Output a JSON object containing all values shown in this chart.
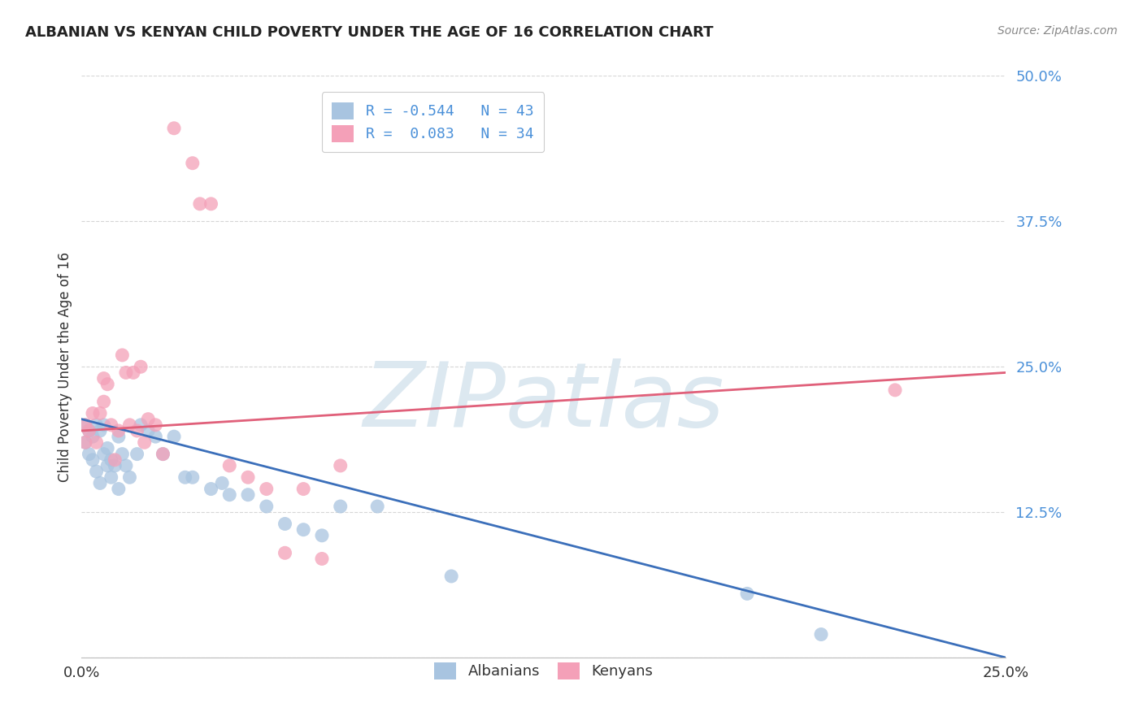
{
  "title": "ALBANIAN VS KENYAN CHILD POVERTY UNDER THE AGE OF 16 CORRELATION CHART",
  "source": "Source: ZipAtlas.com",
  "ylabel": "Child Poverty Under the Age of 16",
  "xlim": [
    0.0,
    0.25
  ],
  "ylim": [
    0.0,
    0.5
  ],
  "yticks": [
    0.0,
    0.125,
    0.25,
    0.375,
    0.5
  ],
  "ytick_labels": [
    "",
    "12.5%",
    "25.0%",
    "37.5%",
    "50.0%"
  ],
  "xtick_labels": [
    "0.0%",
    "",
    "",
    "",
    "",
    "25.0%"
  ],
  "albanian_color": "#a8c4e0",
  "kenyan_color": "#f4a0b8",
  "albanian_line_color": "#3b6fba",
  "kenyan_line_color": "#e0607a",
  "background_color": "#ffffff",
  "grid_color": "#cccccc",
  "watermark_color": "#dce8f0",
  "albanian_R": -0.544,
  "albanian_N": 43,
  "kenyan_R": 0.083,
  "kenyan_N": 34,
  "albanian_x": [
    0.001,
    0.001,
    0.002,
    0.002,
    0.003,
    0.003,
    0.004,
    0.004,
    0.005,
    0.005,
    0.006,
    0.006,
    0.007,
    0.007,
    0.008,
    0.008,
    0.009,
    0.01,
    0.01,
    0.011,
    0.012,
    0.013,
    0.015,
    0.016,
    0.018,
    0.02,
    0.022,
    0.025,
    0.028,
    0.03,
    0.035,
    0.038,
    0.04,
    0.045,
    0.05,
    0.055,
    0.06,
    0.065,
    0.07,
    0.08,
    0.1,
    0.18,
    0.2
  ],
  "albanian_y": [
    0.2,
    0.185,
    0.195,
    0.175,
    0.19,
    0.17,
    0.2,
    0.16,
    0.195,
    0.15,
    0.2,
    0.175,
    0.165,
    0.18,
    0.17,
    0.155,
    0.165,
    0.19,
    0.145,
    0.175,
    0.165,
    0.155,
    0.175,
    0.2,
    0.195,
    0.19,
    0.175,
    0.19,
    0.155,
    0.155,
    0.145,
    0.15,
    0.14,
    0.14,
    0.13,
    0.115,
    0.11,
    0.105,
    0.13,
    0.13,
    0.07,
    0.055,
    0.02
  ],
  "kenyan_x": [
    0.001,
    0.001,
    0.002,
    0.003,
    0.004,
    0.005,
    0.006,
    0.006,
    0.007,
    0.008,
    0.009,
    0.01,
    0.011,
    0.012,
    0.013,
    0.014,
    0.015,
    0.016,
    0.017,
    0.018,
    0.02,
    0.022,
    0.025,
    0.03,
    0.032,
    0.035,
    0.04,
    0.045,
    0.05,
    0.055,
    0.06,
    0.065,
    0.07,
    0.22
  ],
  "kenyan_y": [
    0.2,
    0.185,
    0.195,
    0.21,
    0.185,
    0.21,
    0.24,
    0.22,
    0.235,
    0.2,
    0.17,
    0.195,
    0.26,
    0.245,
    0.2,
    0.245,
    0.195,
    0.25,
    0.185,
    0.205,
    0.2,
    0.175,
    0.455,
    0.425,
    0.39,
    0.39,
    0.165,
    0.155,
    0.145,
    0.09,
    0.145,
    0.085,
    0.165,
    0.23
  ],
  "alb_line_x": [
    0.0,
    0.25
  ],
  "alb_line_y": [
    0.205,
    0.0
  ],
  "ken_line_x": [
    0.0,
    0.25
  ],
  "ken_line_y": [
    0.195,
    0.245
  ]
}
